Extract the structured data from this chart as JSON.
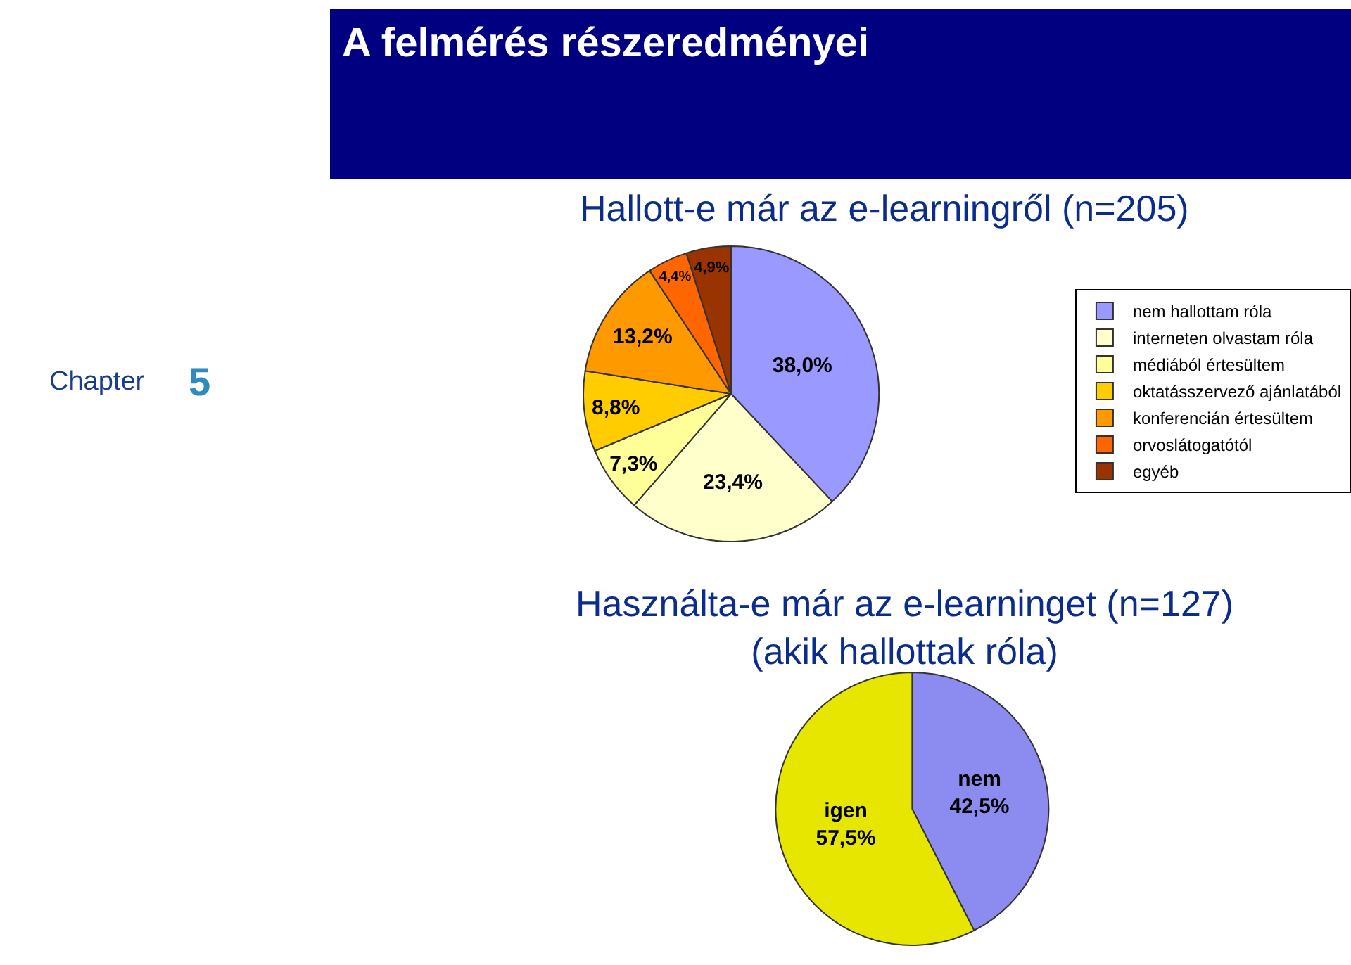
{
  "chart_data": [
    {
      "type": "other",
      "title": "A felmérés részeredményei",
      "annotations": [
        "Chapter",
        "5"
      ]
    },
    {
      "type": "pie",
      "title": "Hallott-e már az e-learningről (n=205)",
      "categories": [
        "nem hallottam róla",
        "interneten olvastam róla",
        "médiából értesültem",
        "oktatásszervező ajánlatából",
        "konferencián értesültem",
        "orvoslátogatótól",
        "egyéb"
      ],
      "values": [
        38.0,
        23.4,
        7.3,
        8.8,
        13.2,
        4.4,
        4.9
      ],
      "value_labels": [
        "38,0%",
        "23,4%",
        "7,3%",
        "8,8%",
        "13,2%",
        "4,4%",
        "4,9%"
      ],
      "colors": [
        "#9999ff",
        "#ffffcc",
        "#ffff99",
        "#ffcc00",
        "#ff9900",
        "#ff6600",
        "#993300"
      ],
      "legend": "right"
    },
    {
      "type": "pie",
      "title": "Használta-e már az e-learninget (n=127)\n(akik hallottak róla)",
      "categories": [
        "nem",
        "igen"
      ],
      "values": [
        42.5,
        57.5
      ],
      "value_labels": [
        "42,5%",
        "57,5%"
      ],
      "colors": [
        "#8c8cf0",
        "#e6e600"
      ]
    }
  ]
}
